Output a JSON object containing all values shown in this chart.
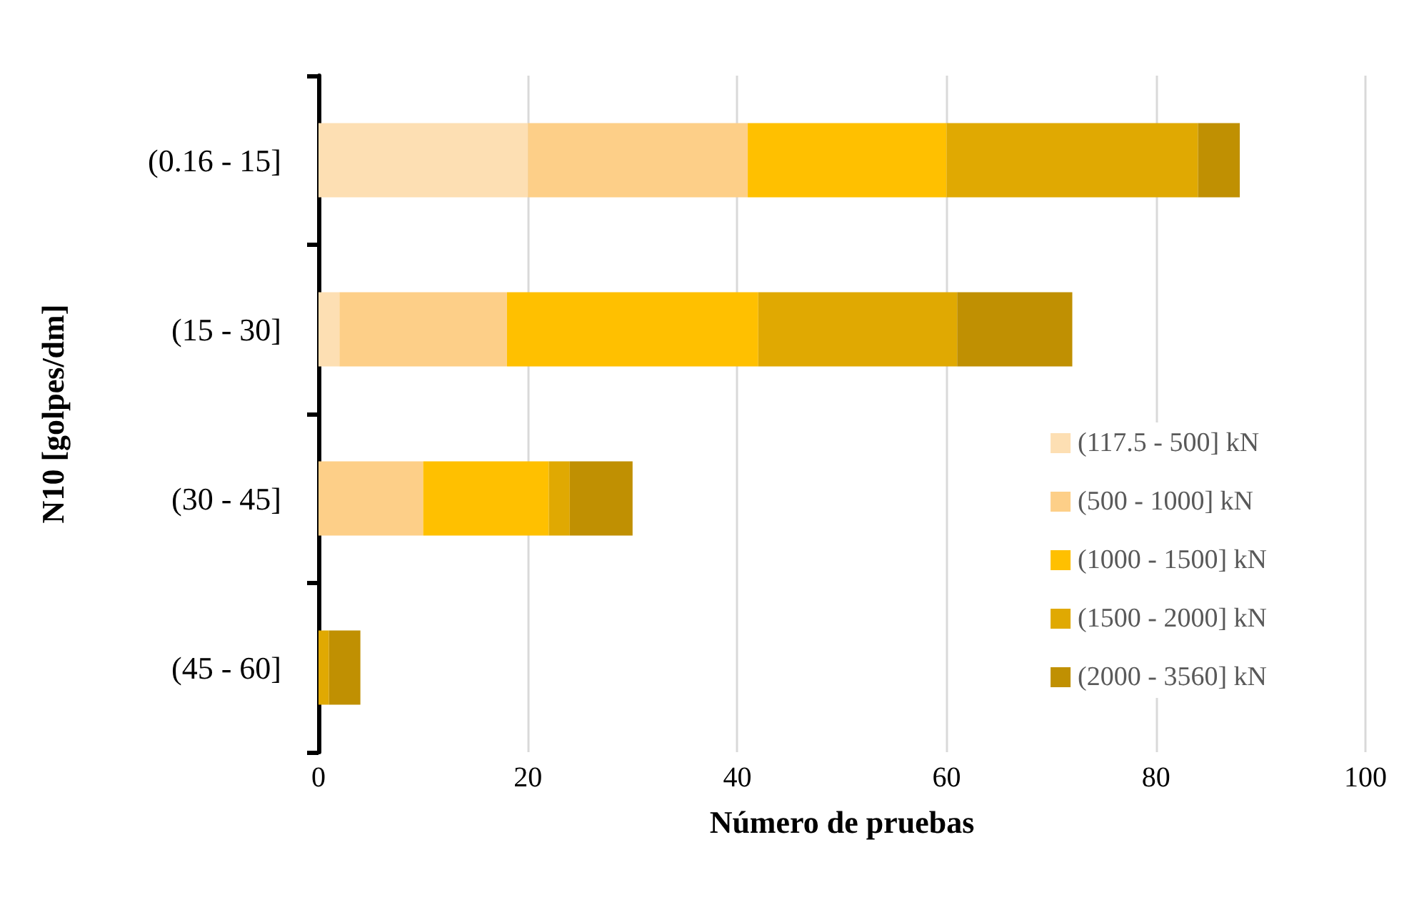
{
  "chart_data": {
    "type": "bar",
    "orientation": "horizontal",
    "stacked": true,
    "xlabel": "Número de pruebas",
    "ylabel": "N10 [golpes/dm]",
    "categories": [
      "(0.16 - 15]",
      "(15 - 30]",
      "(30 - 45]",
      "(45 - 60]"
    ],
    "series": [
      {
        "name": "(117.5 - 500] kN",
        "color": "#fddfb3",
        "values": [
          20,
          2,
          0,
          0
        ]
      },
      {
        "name": "(500 - 1000] kN",
        "color": "#fdcf88",
        "values": [
          21,
          16,
          10,
          0
        ]
      },
      {
        "name": "(1000 - 1500] kN",
        "color": "#ffc000",
        "values": [
          19,
          24,
          12,
          0
        ]
      },
      {
        "name": "(1500 - 2000] kN",
        "color": "#e0a902",
        "values": [
          24,
          19,
          2,
          1
        ]
      },
      {
        "name": "(2000 - 3560] kN",
        "color": "#c09002",
        "values": [
          4,
          11,
          6,
          3
        ]
      }
    ],
    "xlim": [
      0,
      100
    ],
    "xticks": [
      0,
      20,
      40,
      60,
      80,
      100
    ],
    "grid": "x",
    "legend": "right"
  }
}
